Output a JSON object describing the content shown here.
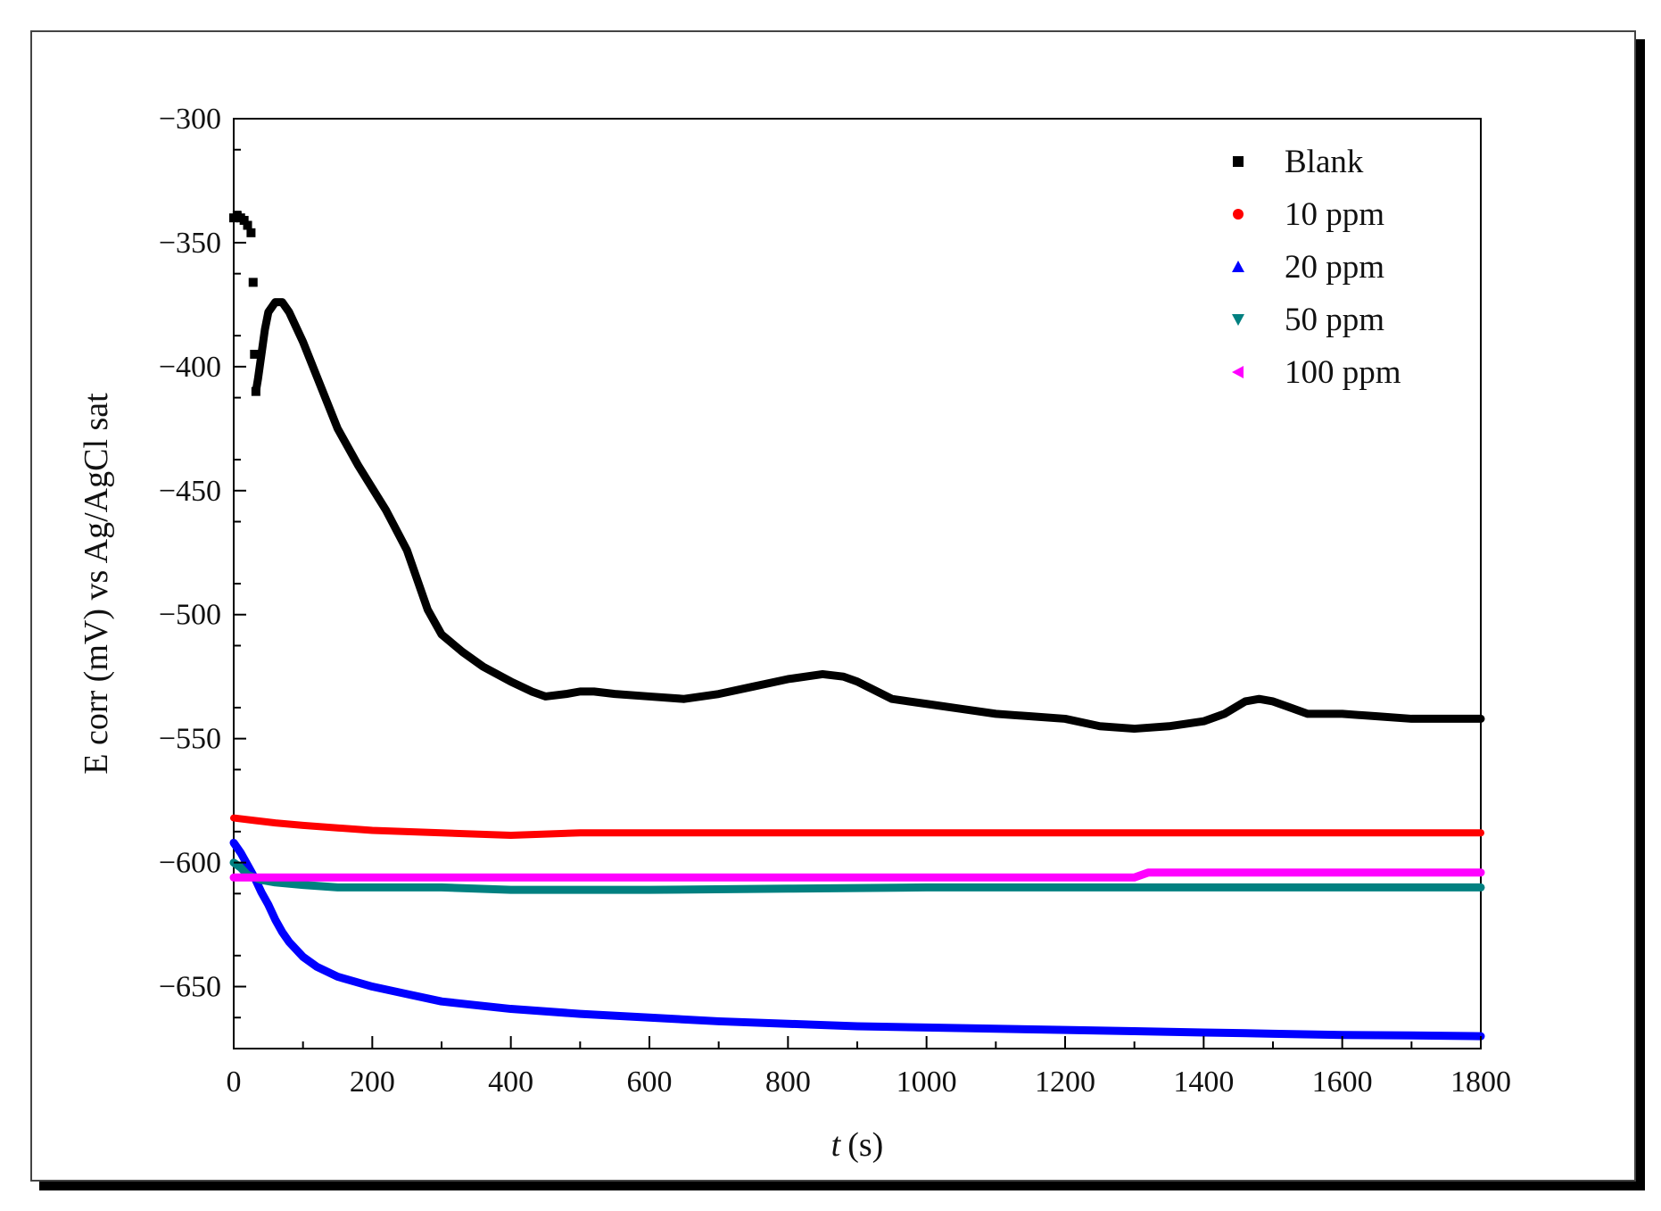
{
  "chart_data": {
    "type": "scatter",
    "title": "",
    "xlabel": "t",
    "xlabel_unit": "(s)",
    "ylabel": "E corr (mV) vs Ag/AgCl sat",
    "xlim": [
      0,
      1800
    ],
    "ylim": [
      -675,
      -300
    ],
    "x_ticks": [
      0,
      200,
      400,
      600,
      800,
      1000,
      1200,
      1400,
      1600,
      1800
    ],
    "y_ticks": [
      -300,
      -350,
      -400,
      -450,
      -500,
      -550,
      -600,
      -650
    ],
    "x_tick_labels": [
      "0",
      "200",
      "400",
      "600",
      "800",
      "1000",
      "1200",
      "1400",
      "1600",
      "1800"
    ],
    "y_tick_labels": [
      "−300",
      "−350",
      "−400",
      "−450",
      "−500",
      "−550",
      "−600",
      "−650"
    ],
    "grid": false,
    "legend_position": "top-right",
    "series": [
      {
        "name": "Blank",
        "color": "#000000",
        "marker": "square",
        "x": [
          0,
          5,
          10,
          15,
          20,
          25,
          28,
          30,
          32,
          35,
          40,
          45,
          50,
          60,
          70,
          80,
          100,
          120,
          150,
          180,
          200,
          220,
          250,
          280,
          300,
          330,
          360,
          400,
          430,
          450,
          480,
          500,
          520,
          550,
          600,
          650,
          700,
          750,
          800,
          850,
          880,
          900,
          950,
          1000,
          1050,
          1100,
          1150,
          1200,
          1250,
          1300,
          1350,
          1400,
          1430,
          1460,
          1480,
          1500,
          1520,
          1550,
          1600,
          1650,
          1700,
          1750,
          1800
        ],
        "y": [
          -340,
          -339,
          -340,
          -341,
          -343,
          -346,
          -366,
          -395,
          -410,
          -405,
          -395,
          -385,
          -378,
          -374,
          -374,
          -378,
          -390,
          -404,
          -425,
          -440,
          -449,
          -458,
          -474,
          -498,
          -508,
          -515,
          -521,
          -527,
          -531,
          -533,
          -532,
          -531,
          -531,
          -532,
          -533,
          -534,
          -532,
          -529,
          -526,
          -524,
          -525,
          -527,
          -534,
          -536,
          -538,
          -540,
          -541,
          -542,
          -545,
          -546,
          -545,
          -543,
          -540,
          -535,
          -534,
          -535,
          -537,
          -540,
          -540,
          -541,
          -542,
          -542,
          -542
        ]
      },
      {
        "name": "10 ppm",
        "color": "#ff0000",
        "marker": "circle",
        "x": [
          0,
          30,
          60,
          100,
          150,
          200,
          300,
          400,
          500,
          600,
          800,
          1000,
          1200,
          1400,
          1600,
          1800
        ],
        "y": [
          -582,
          -583,
          -584,
          -585,
          -586,
          -587,
          -588,
          -589,
          -588,
          -588,
          -588,
          -588,
          -588,
          -588,
          -588,
          -588
        ]
      },
      {
        "name": "20 ppm",
        "color": "#0000ff",
        "marker": "triangle-up",
        "x": [
          0,
          10,
          20,
          30,
          40,
          50,
          60,
          70,
          80,
          100,
          120,
          150,
          200,
          250,
          300,
          400,
          500,
          600,
          700,
          800,
          900,
          1000,
          1100,
          1200,
          1300,
          1400,
          1500,
          1600,
          1700,
          1800
        ],
        "y": [
          -592,
          -596,
          -601,
          -606,
          -612,
          -617,
          -623,
          -628,
          -632,
          -638,
          -642,
          -646,
          -650,
          -653,
          -656,
          -659,
          -661,
          -662.5,
          -664,
          -665,
          -666,
          -666.5,
          -667,
          -667.5,
          -668,
          -668.5,
          -669,
          -669.5,
          -669.7,
          -670
        ]
      },
      {
        "name": "50 ppm",
        "color": "#008080",
        "marker": "triangle-down",
        "x": [
          0,
          10,
          20,
          40,
          60,
          100,
          150,
          200,
          300,
          400,
          600,
          800,
          1000,
          1200,
          1400,
          1600,
          1800
        ],
        "y": [
          -600,
          -602,
          -605,
          -607,
          -608,
          -609,
          -610,
          -610,
          -610,
          -611,
          -611,
          -610.5,
          -610,
          -610,
          -610,
          -610,
          -610
        ]
      },
      {
        "name": "100 ppm",
        "color": "#ff00ff",
        "marker": "triangle-left",
        "x": [
          0,
          200,
          400,
          600,
          800,
          1000,
          1200,
          1300,
          1320,
          1400,
          1600,
          1800
        ],
        "y": [
          -606,
          -606,
          -606,
          -606,
          -606,
          -606,
          -606,
          -606,
          -604,
          -604,
          -604,
          -604
        ]
      }
    ]
  }
}
